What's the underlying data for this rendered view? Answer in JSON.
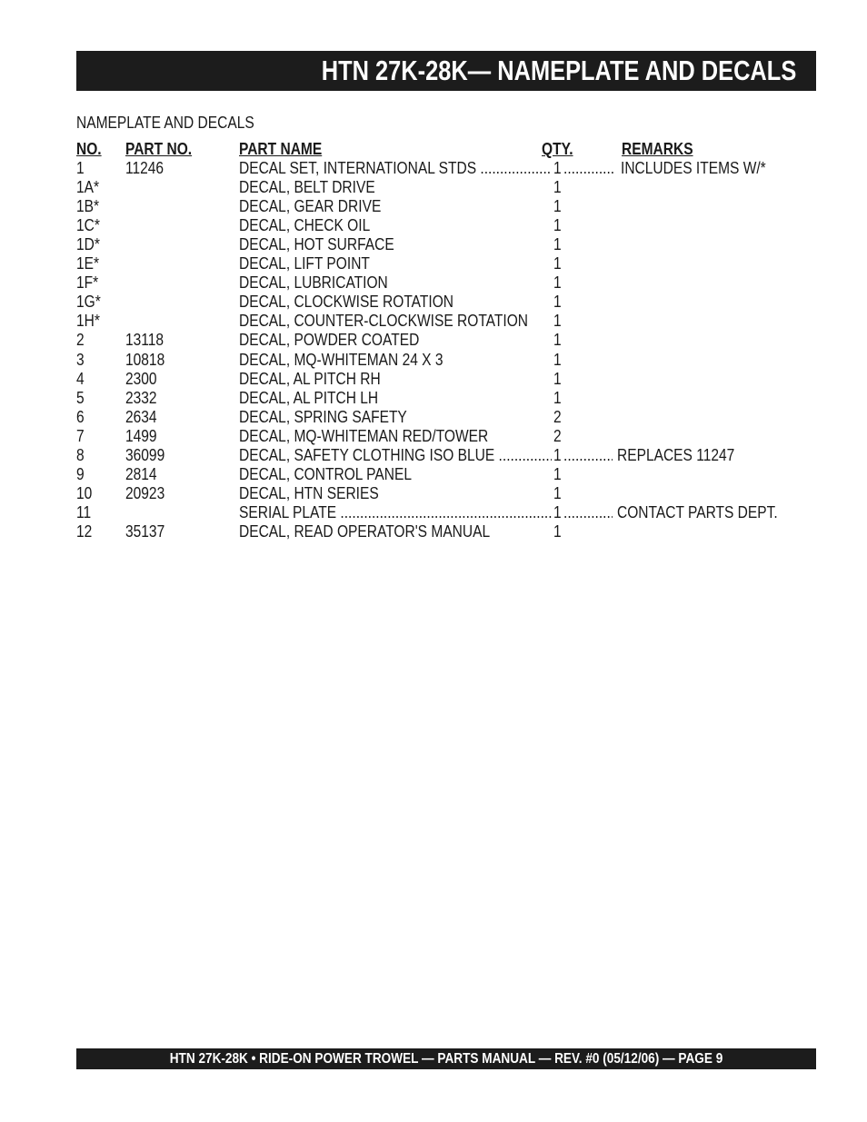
{
  "header": {
    "title": "HTN 27K-28K— NAMEPLATE AND DECALS"
  },
  "section_title": "NAMEPLATE AND DECALS",
  "columns": {
    "no": "NO.",
    "part_no": "PART NO.",
    "part_name": "PART NAME",
    "qty": "QTY.",
    "remarks": "REMARKS"
  },
  "rows": [
    {
      "no": "1",
      "part_no": "11246",
      "name": "DECAL SET, INTERNATIONAL STDS",
      "qty": "1",
      "remarks": "INCLUDES ITEMS W/*"
    },
    {
      "no": "1A*",
      "part_no": "",
      "name": "DECAL, BELT DRIVE",
      "qty": "1",
      "remarks": ""
    },
    {
      "no": "1B*",
      "part_no": "",
      "name": "DECAL, GEAR DRIVE",
      "qty": "1",
      "remarks": ""
    },
    {
      "no": "1C*",
      "part_no": "",
      "name": "DECAL, CHECK OIL",
      "qty": "1",
      "remarks": ""
    },
    {
      "no": "1D*",
      "part_no": "",
      "name": "DECAL, HOT SURFACE",
      "qty": "1",
      "remarks": ""
    },
    {
      "no": "1E*",
      "part_no": "",
      "name": "DECAL, LIFT POINT",
      "qty": "1",
      "remarks": ""
    },
    {
      "no": "1F*",
      "part_no": "",
      "name": "DECAL, LUBRICATION",
      "qty": "1",
      "remarks": ""
    },
    {
      "no": "1G*",
      "part_no": "",
      "name": "DECAL, CLOCKWISE ROTATION",
      "qty": "1",
      "remarks": ""
    },
    {
      "no": "1H*",
      "part_no": "",
      "name": "DECAL, COUNTER-CLOCKWISE ROTATION",
      "qty": "1",
      "remarks": ""
    },
    {
      "no": "2",
      "part_no": "13118",
      "name": "DECAL, POWDER COATED",
      "qty": "1",
      "remarks": ""
    },
    {
      "no": "3",
      "part_no": "10818",
      "name": "DECAL, MQ-WHITEMAN 24 X 3",
      "qty": "1",
      "remarks": ""
    },
    {
      "no": "4",
      "part_no": "2300",
      "name": "DECAL, AL PITCH RH",
      "qty": "1",
      "remarks": ""
    },
    {
      "no": "5",
      "part_no": "2332",
      "name": "DECAL, AL PITCH LH",
      "qty": "1",
      "remarks": ""
    },
    {
      "no": "6",
      "part_no": "2634",
      "name": "DECAL, SPRING SAFETY",
      "qty": "2",
      "remarks": ""
    },
    {
      "no": "7",
      "part_no": "1499",
      "name": "DECAL, MQ-WHITEMAN RED/TOWER",
      "qty": "2",
      "remarks": ""
    },
    {
      "no": "8",
      "part_no": "36099",
      "name": "DECAL, SAFETY CLOTHING ISO BLUE",
      "qty": "1",
      "remarks": "REPLACES 11247"
    },
    {
      "no": "9",
      "part_no": "2814",
      "name": "DECAL, CONTROL PANEL",
      "qty": "1",
      "remarks": ""
    },
    {
      "no": "10",
      "part_no": "20923",
      "name": "DECAL, HTN SERIES",
      "qty": "1",
      "remarks": ""
    },
    {
      "no": "11",
      "part_no": "",
      "name": "SERIAL PLATE",
      "qty": "1",
      "remarks": "CONTACT PARTS DEPT."
    },
    {
      "no": "12",
      "part_no": "35137",
      "name": "DECAL, READ OPERATOR'S MANUAL",
      "qty": "1",
      "remarks": ""
    }
  ],
  "footer": {
    "text": "HTN 27K-28K  • RIDE-ON POWER TROWEL — PARTS MANUAL — REV. #0 (05/12/06) — PAGE 9"
  }
}
